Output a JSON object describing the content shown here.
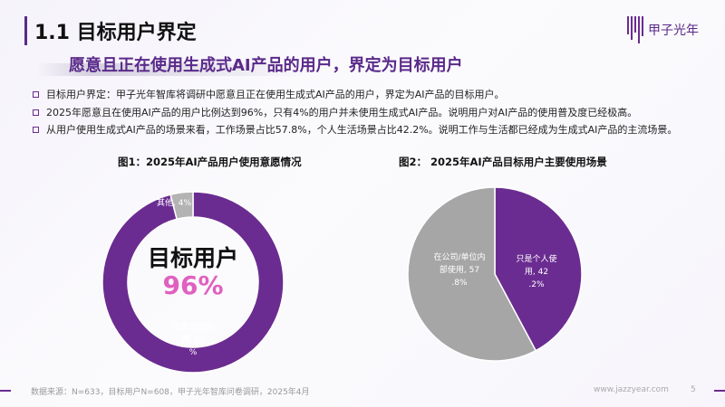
{
  "header": {
    "title": "1.1 目标用户界定",
    "logo_text": "甲子光年",
    "subtitle": "愿意且正在使用生成式AI产品的用户，界定为目标用户"
  },
  "bullets": [
    "目标用户界定：甲子光年智库将调研中愿意且正在使用生成式AI产品的用户，界定为AI产品的目标用户。",
    "2025年愿意且在使用AI产品的用户比例达到96%，只有4%的用户并未使用生成式AI产品。说明用户对AI产品的使用普及度已经极高。",
    "从用户使用生成式AI产品的场景来看，工作场景占比57.8%，个人生活场景占比42.2%。说明工作与生活都已经成为生成式AI产品的主流场景。"
  ],
  "chart_data": [
    {
      "type": "pie",
      "variant": "donut",
      "title": "图1：2025年AI产品用户使用意愿情况",
      "center_label": "目标用户",
      "center_value": "96%",
      "slices": [
        {
          "label": "愿意且在使用, 96%",
          "value": 96,
          "color": "#6b2c91"
        },
        {
          "label": "其他, 4%",
          "value": 4,
          "color": "#b3b3b3"
        }
      ]
    },
    {
      "type": "pie",
      "title": "图2： 2025年AI产品目标用户主要使用场景",
      "slices": [
        {
          "label": "只是个人使用, 42.2%",
          "value": 42.2,
          "color": "#6b2c91"
        },
        {
          "label": "在公司/单位内部使用, 57.8%",
          "value": 57.8,
          "color": "#a6a6a6"
        }
      ]
    }
  ],
  "footer": {
    "source": "数据来源：N=633，目标用户N=608，甲子光年智库问卷调研，2025年4月",
    "url": "www.jazzyear.com",
    "page": "5"
  },
  "colors": {
    "accent": "#6b2c91",
    "center_value": "#e060c0"
  }
}
